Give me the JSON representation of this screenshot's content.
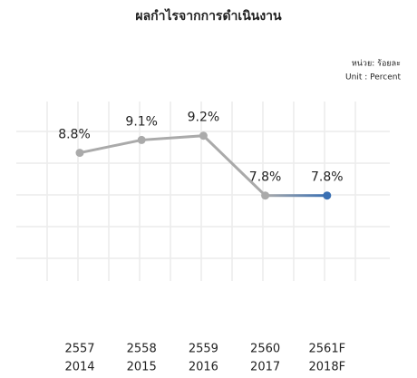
{
  "chart_data": {
    "type": "line",
    "title": "ผลกำไรจากการดำเนินงาน",
    "unit_labels": [
      "หน่วย: ร้อยละ",
      "Unit : Percent"
    ],
    "categories": [
      "2557",
      "2558",
      "2559",
      "2560",
      "2561F"
    ],
    "categories_secondary": [
      "2014",
      "2015",
      "2016",
      "2017",
      "2018F"
    ],
    "series": [
      {
        "name": null,
        "color": "#aaaaaa",
        "forecast_color": "#3a70b3",
        "values": [
          8.8,
          9.1,
          9.2,
          7.8,
          7.8
        ],
        "value_labels": [
          "8.8%",
          "9.1%",
          "9.2%",
          "7.8%",
          "7.8%"
        ]
      }
    ],
    "ylim": [
      5.8,
      10
    ],
    "grid": true
  }
}
